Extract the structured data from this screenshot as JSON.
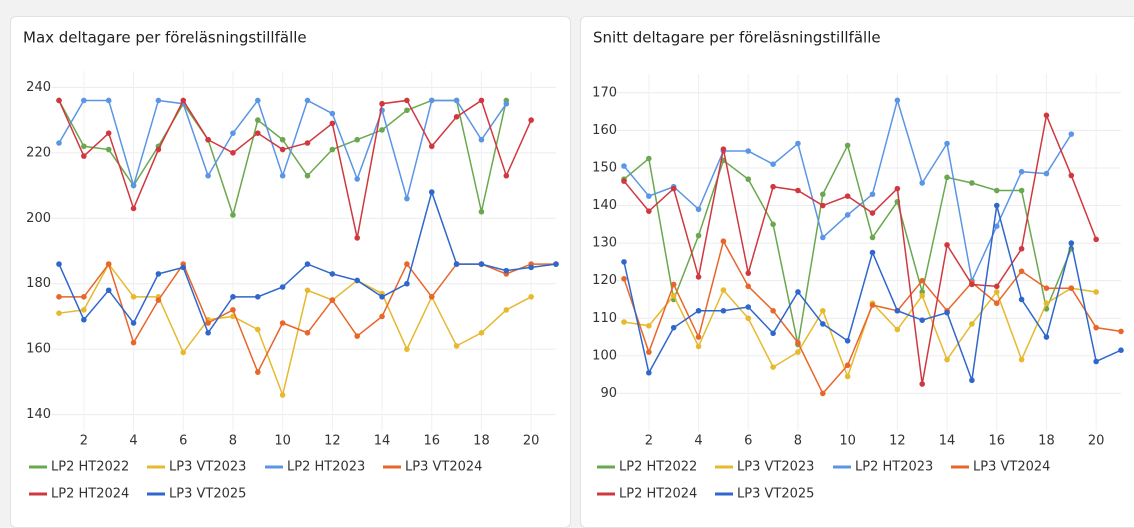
{
  "chart_data": [
    {
      "type": "line",
      "title": "Max deltagare per föreläsningstillfälle",
      "x": [
        1,
        2,
        3,
        4,
        5,
        6,
        7,
        8,
        9,
        10,
        11,
        12,
        13,
        14,
        15,
        16,
        17,
        18,
        19,
        20,
        21
      ],
      "xlim": [
        1,
        21
      ],
      "xticks": [
        2,
        4,
        6,
        8,
        10,
        12,
        14,
        16,
        18,
        20
      ],
      "ylim": [
        135,
        245
      ],
      "yticks": [
        140,
        160,
        180,
        200,
        220,
        240
      ],
      "grid": true,
      "series": [
        {
          "name": "LP2 HT2022",
          "color": "#6aa84f",
          "values": [
            236,
            222,
            221,
            210,
            222,
            235,
            224,
            201,
            230,
            224,
            213,
            221,
            224,
            227,
            233,
            236,
            236,
            202,
            236,
            null,
            null
          ]
        },
        {
          "name": "LP3 VT2023",
          "color": "#e6b92e",
          "values": [
            171,
            172,
            186,
            176,
            176,
            159,
            169,
            170,
            166,
            146,
            178,
            175,
            181,
            177,
            160,
            176,
            161,
            165,
            172,
            176,
            null
          ]
        },
        {
          "name": "LP2 HT2023",
          "color": "#5b95e6",
          "values": [
            223,
            236,
            236,
            210,
            236,
            235,
            213,
            226,
            236,
            213,
            236,
            232,
            212,
            233,
            206,
            236,
            236,
            224,
            235,
            null,
            null
          ]
        },
        {
          "name": "LP3 VT2024",
          "color": "#e8662a",
          "values": [
            176,
            176,
            186,
            162,
            175,
            186,
            168,
            172,
            153,
            168,
            165,
            175,
            164,
            170,
            186,
            176,
            186,
            186,
            183,
            186,
            186
          ]
        },
        {
          "name": "LP2 HT2024",
          "color": "#d0383f",
          "values": [
            236,
            219,
            226,
            203,
            221,
            236,
            224,
            220,
            226,
            221,
            223,
            229,
            194,
            235,
            236,
            222,
            231,
            236,
            213,
            230,
            null
          ]
        },
        {
          "name": "LP3 VT2025",
          "color": "#2f67cc",
          "values": [
            186,
            169,
            178,
            168,
            183,
            185,
            165,
            176,
            176,
            179,
            186,
            183,
            181,
            176,
            180,
            208,
            186,
            186,
            184,
            185,
            186
          ]
        }
      ]
    },
    {
      "type": "line",
      "title": "Snitt deltagare per föreläsningstillfälle",
      "x": [
        1,
        2,
        3,
        4,
        5,
        6,
        7,
        8,
        9,
        10,
        11,
        12,
        13,
        14,
        15,
        16,
        17,
        18,
        19,
        20,
        21
      ],
      "xlim": [
        1,
        21
      ],
      "xticks": [
        2,
        4,
        6,
        8,
        10,
        12,
        14,
        16,
        18,
        20
      ],
      "ylim": [
        80,
        175
      ],
      "yticks": [
        90,
        100,
        110,
        120,
        130,
        140,
        150,
        160,
        170
      ],
      "grid": true,
      "series": [
        {
          "name": "LP2 HT2022",
          "color": "#6aa84f",
          "values": [
            147,
            152.5,
            115,
            132,
            152,
            147,
            135,
            103,
            143,
            156,
            131.5,
            141,
            117,
            147.5,
            146,
            144,
            144,
            112.5,
            128.5,
            null,
            null
          ]
        },
        {
          "name": "LP3 VT2023",
          "color": "#e6b92e",
          "values": [
            109,
            108,
            116,
            102.5,
            117.5,
            110,
            97,
            101,
            112,
            94.5,
            114,
            107,
            116,
            99,
            108.5,
            117,
            99,
            114,
            118,
            117,
            null
          ]
        },
        {
          "name": "LP2 HT2023",
          "color": "#5b95e6",
          "values": [
            150.5,
            142.5,
            145,
            139,
            154.5,
            154.5,
            151,
            156.5,
            131.5,
            137.5,
            143,
            168,
            146,
            156.5,
            120,
            134.5,
            149,
            148.5,
            159,
            null,
            null
          ]
        },
        {
          "name": "LP3 VT2024",
          "color": "#e8662a",
          "values": [
            120.5,
            101,
            119,
            105,
            130.5,
            118.5,
            112,
            103.5,
            90,
            97.5,
            113.5,
            112,
            120,
            112,
            119.5,
            114,
            122.5,
            118,
            118,
            107.5,
            106.5
          ]
        },
        {
          "name": "LP2 HT2024",
          "color": "#d0383f",
          "values": [
            146.5,
            138.5,
            144.5,
            121,
            155,
            122,
            145,
            144,
            140,
            142.5,
            138,
            144.5,
            92.5,
            129.5,
            119,
            118.5,
            128.5,
            164,
            148,
            131,
            null
          ]
        },
        {
          "name": "LP3 VT2025",
          "color": "#2f67cc",
          "values": [
            125,
            95.5,
            107.5,
            112,
            112,
            113,
            106,
            117,
            108.5,
            104,
            127.5,
            112,
            109.5,
            111.5,
            93.5,
            140,
            115,
            105,
            130,
            98.5,
            101.5
          ]
        }
      ]
    }
  ]
}
